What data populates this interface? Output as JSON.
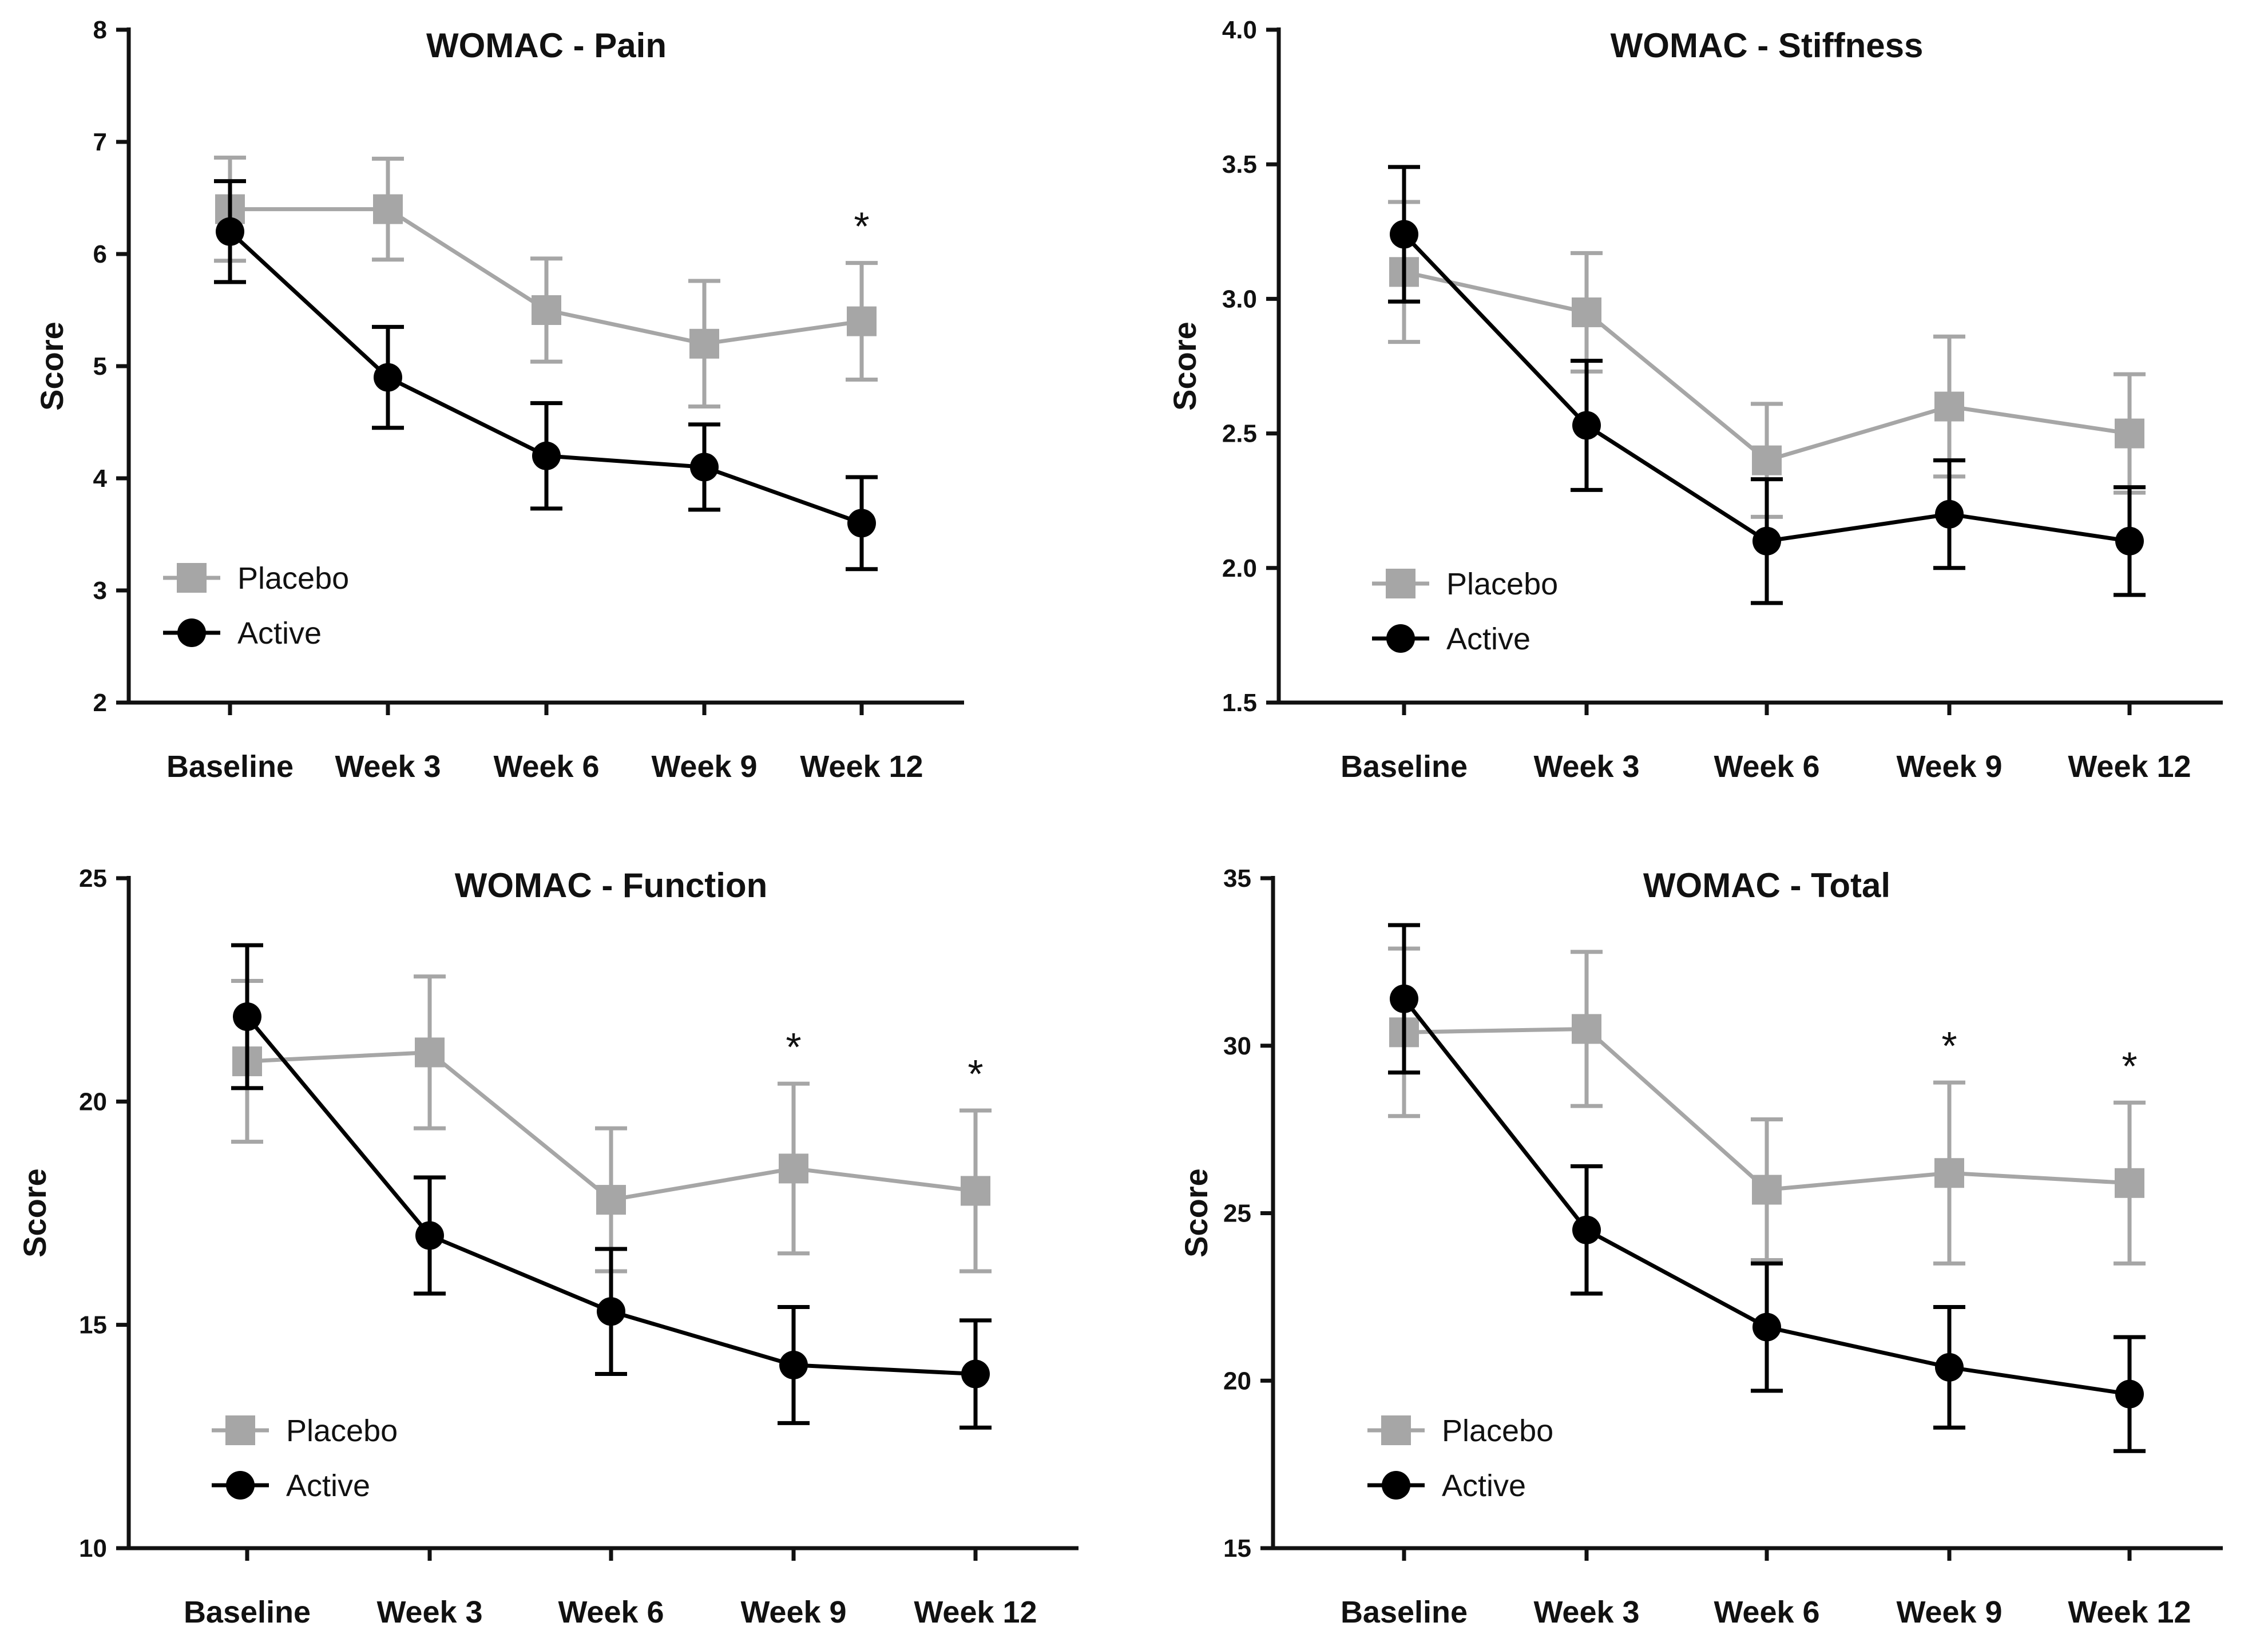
{
  "colors": {
    "placebo": "#a6a6a6",
    "active": "#000000",
    "axis": "#111111"
  },
  "chart_data": [
    {
      "type": "line",
      "title": "WOMAC - Pain",
      "ylabel": "Score",
      "xlabel": "",
      "categories": [
        "Baseline",
        "Week 3",
        "Week 6",
        "Week 9",
        "Week 12"
      ],
      "ylim": [
        2,
        8
      ],
      "yticks": [
        "2",
        "3",
        "4",
        "5",
        "6",
        "7",
        "8"
      ],
      "legend_position": "bottom-left",
      "series": [
        {
          "name": "Placebo",
          "marker": "square",
          "values": [
            6.4,
            6.4,
            5.5,
            5.2,
            5.4
          ],
          "errors": [
            0.46,
            0.45,
            0.46,
            0.56,
            0.52
          ]
        },
        {
          "name": "Active",
          "marker": "circle",
          "values": [
            6.2,
            4.9,
            4.2,
            4.1,
            3.6
          ],
          "errors": [
            0.45,
            0.45,
            0.47,
            0.38,
            0.41
          ]
        }
      ],
      "significance": [
        {
          "category": "Week 12",
          "label": "*"
        }
      ]
    },
    {
      "type": "line",
      "title": "WOMAC - Stiffness",
      "ylabel": "Score",
      "xlabel": "",
      "categories": [
        "Baseline",
        "Week 3",
        "Week 6",
        "Week 9",
        "Week 12"
      ],
      "ylim": [
        1.5,
        4.0
      ],
      "yticks": [
        "1.5",
        "2.0",
        "2.5",
        "3.0",
        "3.5",
        "4.0"
      ],
      "legend_position": "bottom-left",
      "series": [
        {
          "name": "Placebo",
          "marker": "square",
          "values": [
            3.1,
            2.95,
            2.4,
            2.6,
            2.5
          ],
          "errors": [
            0.26,
            0.22,
            0.21,
            0.26,
            0.22
          ]
        },
        {
          "name": "Active",
          "marker": "circle",
          "values": [
            3.24,
            2.53,
            2.1,
            2.2,
            2.1
          ],
          "errors": [
            0.25,
            0.24,
            0.23,
            0.2,
            0.2
          ]
        }
      ],
      "significance": []
    },
    {
      "type": "line",
      "title": "WOMAC - Function",
      "ylabel": "Score",
      "xlabel": "",
      "categories": [
        "Baseline",
        "Week 3",
        "Week 6",
        "Week 9",
        "Week 12"
      ],
      "ylim": [
        10,
        25
      ],
      "yticks": [
        "10",
        "15",
        "20",
        "25"
      ],
      "legend_position": "bottom-left",
      "series": [
        {
          "name": "Placebo",
          "marker": "square",
          "values": [
            20.9,
            21.1,
            17.8,
            18.5,
            18.0
          ],
          "errors": [
            1.8,
            1.7,
            1.6,
            1.9,
            1.8
          ]
        },
        {
          "name": "Active",
          "marker": "circle",
          "values": [
            21.9,
            17.0,
            15.3,
            14.1,
            13.9
          ],
          "errors": [
            1.6,
            1.3,
            1.4,
            1.3,
            1.2
          ]
        }
      ],
      "significance": [
        {
          "category": "Week 9",
          "label": "*"
        },
        {
          "category": "Week 12",
          "label": "*"
        }
      ]
    },
    {
      "type": "line",
      "title": "WOMAC - Total",
      "ylabel": "Score",
      "xlabel": "",
      "categories": [
        "Baseline",
        "Week 3",
        "Week 6",
        "Week 9",
        "Week 12"
      ],
      "ylim": [
        15,
        35
      ],
      "yticks": [
        "15",
        "20",
        "25",
        "30",
        "35"
      ],
      "legend_position": "bottom-left",
      "series": [
        {
          "name": "Placebo",
          "marker": "square",
          "values": [
            30.4,
            30.5,
            25.7,
            26.2,
            25.9
          ],
          "errors": [
            2.5,
            2.3,
            2.1,
            2.7,
            2.4
          ]
        },
        {
          "name": "Active",
          "marker": "circle",
          "values": [
            31.4,
            24.5,
            21.6,
            20.4,
            19.6
          ],
          "errors": [
            2.2,
            1.9,
            1.9,
            1.8,
            1.7
          ]
        }
      ],
      "significance": [
        {
          "category": "Week 9",
          "label": "*"
        },
        {
          "category": "Week 12",
          "label": "*"
        }
      ]
    }
  ]
}
